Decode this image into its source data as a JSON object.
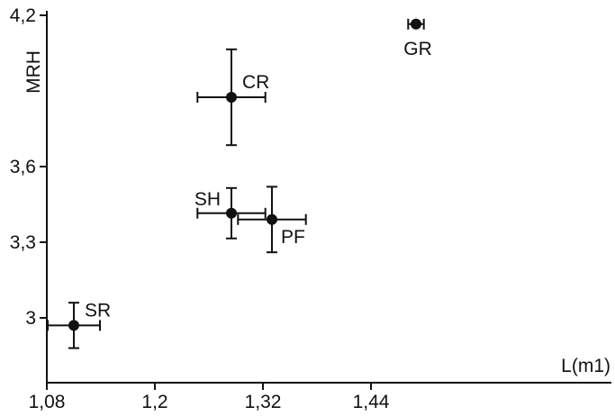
{
  "colors": {
    "ink": "#111111",
    "background": "#ffffff"
  },
  "chart_data": {
    "type": "scatter",
    "title": "",
    "xlabel": "L(m1)",
    "ylabel": "MRH",
    "xlim": [
      1.08,
      1.5
    ],
    "ylim": [
      2.87,
      4.23
    ],
    "grid": false,
    "x_ticks": [
      1.08,
      1.2,
      1.32,
      1.44
    ],
    "x_tick_labels": [
      "1,08",
      "1,2",
      "1,32",
      "1,44"
    ],
    "y_ticks": [
      3.0,
      3.3,
      3.6,
      4.2
    ],
    "y_tick_labels": [
      "3",
      "3,3",
      "3,6",
      "4,2"
    ],
    "points": [
      {
        "label": "GR",
        "x": 1.49,
        "y": 4.165,
        "x_err": 0.006,
        "y_err": 0.0,
        "label_pos": "below"
      },
      {
        "label": "CR",
        "x": 1.285,
        "y": 3.875,
        "x_err": 0.026,
        "y_err": 0.19,
        "label_pos": "upper-right"
      },
      {
        "label": "SH",
        "x": 1.285,
        "y": 3.415,
        "x_err": 0.026,
        "y_err": 0.1,
        "label_pos": "upper-left"
      },
      {
        "label": "PF",
        "x": 1.33,
        "y": 3.39,
        "x_err": 0.026,
        "y_err": 0.13,
        "label_pos": "lower-right"
      },
      {
        "label": "SR",
        "x": 1.11,
        "y": 2.97,
        "x_err": 0.02,
        "y_err": 0.09,
        "label_pos": "upper-right"
      }
    ]
  }
}
